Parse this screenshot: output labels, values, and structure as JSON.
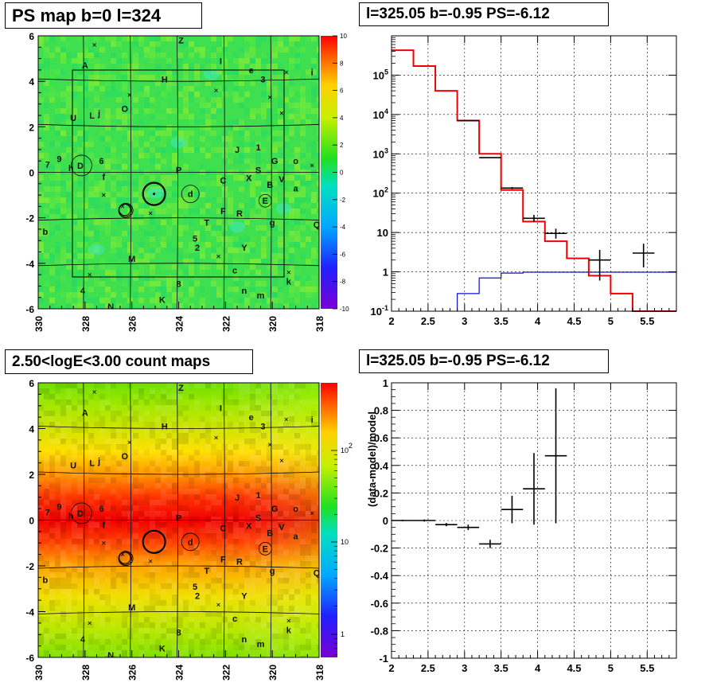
{
  "titles": {
    "psmap": "PS map b=0 l=324",
    "spectrum": "l=325.05 b=-0.95 PS=-6.12",
    "countmap": "2.50<logE<3.00 count maps",
    "residual": "l=325.05 b=-0.95 PS=-6.12"
  },
  "map_axes": {
    "x_ticks": [
      "330",
      "328",
      "326",
      "324",
      "322",
      "320",
      "318"
    ],
    "y_ticks": [
      "6",
      "4",
      "2",
      "0",
      "-2",
      "-4",
      "-6"
    ],
    "xlim": [
      330,
      318
    ],
    "ylim": [
      -6,
      6
    ]
  },
  "psmap_colorbar": {
    "labels": [
      "10",
      "8",
      "6",
      "4",
      "2",
      "0",
      "-2",
      "-4",
      "-6",
      "-8",
      "-10"
    ],
    "range": [
      -10,
      10
    ]
  },
  "count_colorbar": {
    "labels": [
      "10^2",
      "10",
      "1"
    ],
    "scale": "log"
  },
  "map_labels": [
    {
      "t": "Z",
      "l": 323.9,
      "b": 5.8
    },
    {
      "t": "A",
      "l": 328.0,
      "b": 4.7
    },
    {
      "t": "I",
      "l": 322.2,
      "b": 4.9
    },
    {
      "t": "e",
      "l": 320.9,
      "b": 4.5
    },
    {
      "t": "i",
      "l": 318.3,
      "b": 4.4
    },
    {
      "t": "H",
      "l": 324.6,
      "b": 4.1
    },
    {
      "t": "3",
      "l": 320.4,
      "b": 4.1
    },
    {
      "t": "O",
      "l": 326.3,
      "b": 2.8
    },
    {
      "t": "U",
      "l": 328.5,
      "b": 2.4
    },
    {
      "t": "L",
      "l": 327.7,
      "b": 2.5
    },
    {
      "t": "j",
      "l": 327.4,
      "b": 2.6
    },
    {
      "t": "J",
      "l": 321.5,
      "b": 1.0
    },
    {
      "t": "1",
      "l": 320.6,
      "b": 1.1
    },
    {
      "t": "7",
      "l": 329.6,
      "b": 0.35
    },
    {
      "t": "9",
      "l": 329.1,
      "b": 0.6
    },
    {
      "t": "h",
      "l": 328.6,
      "b": 0.2
    },
    {
      "t": "6",
      "l": 327.3,
      "b": 0.5
    },
    {
      "t": "D",
      "l": 328.2,
      "b": 0.3
    },
    {
      "t": "G",
      "l": 319.9,
      "b": 0.5
    },
    {
      "t": "o",
      "l": 319.0,
      "b": 0.5
    },
    {
      "t": "S",
      "l": 320.6,
      "b": 0.1
    },
    {
      "t": "f",
      "l": 327.2,
      "b": -0.2
    },
    {
      "t": "P",
      "l": 324.0,
      "b": 0.1
    },
    {
      "t": "X",
      "l": 321.0,
      "b": -0.25
    },
    {
      "t": "C",
      "l": 322.1,
      "b": -0.35
    },
    {
      "t": "V",
      "l": 319.6,
      "b": -0.3
    },
    {
      "t": "B",
      "l": 320.1,
      "b": -0.55
    },
    {
      "t": "a",
      "l": 319.0,
      "b": -0.7
    },
    {
      "t": "d",
      "l": 323.5,
      "b": -0.95
    },
    {
      "t": "E",
      "l": 320.3,
      "b": -1.25
    },
    {
      "t": "F",
      "l": 322.1,
      "b": -1.7
    },
    {
      "t": "R",
      "l": 321.4,
      "b": -1.8
    },
    {
      "t": "T",
      "l": 322.8,
      "b": -2.2
    },
    {
      "t": "g",
      "l": 320.0,
      "b": -2.2
    },
    {
      "t": "Q",
      "l": 318.1,
      "b": -2.3
    },
    {
      "t": "b",
      "l": 329.7,
      "b": -2.6
    },
    {
      "t": "5",
      "l": 323.3,
      "b": -2.9
    },
    {
      "t": "2",
      "l": 323.2,
      "b": -3.3
    },
    {
      "t": "Y",
      "l": 321.2,
      "b": -3.3
    },
    {
      "t": "M",
      "l": 326.0,
      "b": -3.8
    },
    {
      "t": "c",
      "l": 321.6,
      "b": -4.3
    },
    {
      "t": "8",
      "l": 324.0,
      "b": -4.9
    },
    {
      "t": "k",
      "l": 319.3,
      "b": -4.8
    },
    {
      "t": "4",
      "l": 328.1,
      "b": -5.2
    },
    {
      "t": "n",
      "l": 321.2,
      "b": -5.2
    },
    {
      "t": "m",
      "l": 320.5,
      "b": -5.4
    },
    {
      "t": "K",
      "l": 324.7,
      "b": -5.6
    },
    {
      "t": "N",
      "l": 326.9,
      "b": -5.9
    }
  ],
  "chart_data": [
    {
      "type": "heatmap",
      "title": "PS map b=0 l=324",
      "xlabel": "",
      "ylabel": "",
      "xlim": [
        330,
        318
      ],
      "ylim": [
        -6,
        6
      ],
      "colorbar": [
        -10,
        10
      ]
    },
    {
      "type": "line",
      "title": "l=325.05 b=-0.95 PS=-6.12",
      "xlabel": "",
      "ylabel": "",
      "xlim": [
        2,
        5.9
      ],
      "ylim": [
        0.1,
        1000000
      ],
      "yscale": "log",
      "x_ticks": [
        "2",
        "2.5",
        "3",
        "3.5",
        "4",
        "4.5",
        "5",
        "5.5"
      ],
      "y_ticks": [
        "10^-1",
        "1",
        "10",
        "10^2",
        "10^3",
        "10^4",
        "10^5"
      ],
      "grid": true,
      "model_red_steps": [
        {
          "x0": 2.0,
          "x1": 2.3,
          "y": 430000
        },
        {
          "x0": 2.3,
          "x1": 2.6,
          "y": 170000
        },
        {
          "x0": 2.6,
          "x1": 2.9,
          "y": 40000
        },
        {
          "x0": 2.9,
          "x1": 3.2,
          "y": 7000
        },
        {
          "x0": 3.2,
          "x1": 3.5,
          "y": 1000
        },
        {
          "x0": 3.5,
          "x1": 3.8,
          "y": 120
        },
        {
          "x0": 3.8,
          "x1": 4.1,
          "y": 19
        },
        {
          "x0": 4.1,
          "x1": 4.4,
          "y": 6
        },
        {
          "x0": 4.4,
          "x1": 4.7,
          "y": 2.2
        },
        {
          "x0": 4.7,
          "x1": 5.0,
          "y": 0.8
        },
        {
          "x0": 5.0,
          "x1": 5.3,
          "y": 0.28
        },
        {
          "x0": 5.3,
          "x1": 5.9,
          "y": 0.1
        }
      ],
      "source_blue_steps": [
        {
          "x0": 2.9,
          "x1": 3.2,
          "y": 0.28
        },
        {
          "x0": 3.2,
          "x1": 3.5,
          "y": 0.7
        },
        {
          "x0": 3.5,
          "x1": 3.8,
          "y": 0.93
        },
        {
          "x0": 3.8,
          "x1": 5.9,
          "y": 0.98
        }
      ],
      "data_points": [
        {
          "x": 3.05,
          "xerr": 0.15,
          "y": 7000,
          "ylo": 6900,
          "yhi": 7100
        },
        {
          "x": 3.35,
          "xerr": 0.15,
          "y": 800,
          "ylo": 780,
          "yhi": 820
        },
        {
          "x": 3.65,
          "xerr": 0.15,
          "y": 135,
          "ylo": 127,
          "yhi": 143
        },
        {
          "x": 3.95,
          "xerr": 0.15,
          "y": 23,
          "ylo": 19,
          "yhi": 28
        },
        {
          "x": 4.25,
          "xerr": 0.15,
          "y": 9.5,
          "ylo": 7,
          "yhi": 12.5
        },
        {
          "x": 4.85,
          "xerr": 0.15,
          "y": 2.0,
          "ylo": 0.6,
          "yhi": 3.6
        },
        {
          "x": 5.45,
          "xerr": 0.15,
          "y": 3.0,
          "ylo": 1.3,
          "yhi": 5.2
        }
      ]
    },
    {
      "type": "heatmap",
      "title": "2.50<logE<3.00 count maps",
      "xlabel": "",
      "ylabel": "",
      "xlim": [
        330,
        318
      ],
      "ylim": [
        -6,
        6
      ],
      "colorbar_scale": "log"
    },
    {
      "type": "scatter",
      "title": "l=325.05 b=-0.95 PS=-6.12",
      "xlabel": "",
      "ylabel": "(data-model)/model",
      "xlim": [
        2,
        5.9
      ],
      "ylim": [
        -1,
        1
      ],
      "x_ticks": [
        "2",
        "2.5",
        "3",
        "3.5",
        "4",
        "4.5",
        "5",
        "5.5"
      ],
      "y_ticks": [
        "-1",
        "-0.8",
        "-0.6",
        "-0.4",
        "-0.2",
        "0",
        "0.2",
        "0.4",
        "0.6",
        "0.8",
        "1"
      ],
      "grid": true,
      "points": [
        {
          "x": 2.15,
          "xerr": 0.15,
          "y": 0.0,
          "yerr": 0.005
        },
        {
          "x": 2.45,
          "xerr": 0.15,
          "y": 0.0,
          "yerr": 0.008
        },
        {
          "x": 2.75,
          "xerr": 0.15,
          "y": -0.03,
          "yerr": 0.012
        },
        {
          "x": 3.05,
          "xerr": 0.15,
          "y": -0.05,
          "yerr": 0.02
        },
        {
          "x": 3.35,
          "xerr": 0.15,
          "y": -0.17,
          "yerr": 0.03
        },
        {
          "x": 3.65,
          "xerr": 0.15,
          "y": 0.08,
          "yerr": 0.1
        },
        {
          "x": 3.95,
          "xerr": 0.15,
          "y": 0.23,
          "yerr": 0.26
        },
        {
          "x": 4.25,
          "xerr": 0.15,
          "y": 0.47,
          "yerr": 0.49
        }
      ]
    }
  ]
}
